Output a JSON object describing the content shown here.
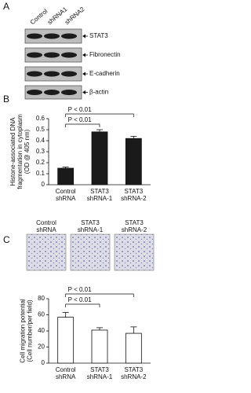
{
  "panel_a": {
    "label": "A",
    "lanes": [
      "Control",
      "shRNA1",
      "shRNA2"
    ],
    "proteins": [
      "STAT3",
      "Fibronectin",
      "E-cadherin",
      "β-actin"
    ]
  },
  "panel_b": {
    "label": "B"
  },
  "panel_c": {
    "label": "C",
    "images": [
      [
        "Control",
        "shRNA"
      ],
      [
        "STAT3",
        "shRNA-1"
      ],
      [
        "STAT3",
        "shRNA-2"
      ]
    ]
  },
  "chart_data": [
    {
      "type": "bar",
      "y_label": [
        "Histone-associated DNA",
        "fragmentation in cytoplasm",
        "(OD @ 405 nm)"
      ],
      "categories": [
        [
          "Control",
          "shRNA"
        ],
        [
          "STAT3",
          "shRNA-1"
        ],
        [
          "STAT3",
          "shRNA-2"
        ]
      ],
      "series": [
        {
          "color": "#1a1a1a",
          "values": [
            0.15,
            0.48,
            0.42
          ],
          "errors": [
            0.01,
            0.02,
            0.02
          ]
        }
      ],
      "ylim": [
        0,
        0.6
      ],
      "yticks": [
        0,
        0.1,
        0.2,
        0.3,
        0.4,
        0.5,
        0.6
      ],
      "annotations": [
        "P < 0.01",
        "P < 0.01"
      ]
    },
    {
      "type": "bar",
      "y_label": [
        "Cell migration potential",
        "(Cell number/per field)"
      ],
      "categories": [
        [
          "Control",
          "shRNA"
        ],
        [
          "STAT3",
          "shRNA-1"
        ],
        [
          "STAT3",
          "shRNA-2"
        ]
      ],
      "series": [
        {
          "color": "#ffffff",
          "values": [
            57,
            41,
            37
          ],
          "errors": [
            6,
            3,
            8
          ]
        }
      ],
      "ylim": [
        0,
        80
      ],
      "yticks": [
        0,
        20,
        40,
        60,
        80
      ],
      "annotations": [
        "P < 0.01",
        "P < 0.01"
      ]
    }
  ]
}
